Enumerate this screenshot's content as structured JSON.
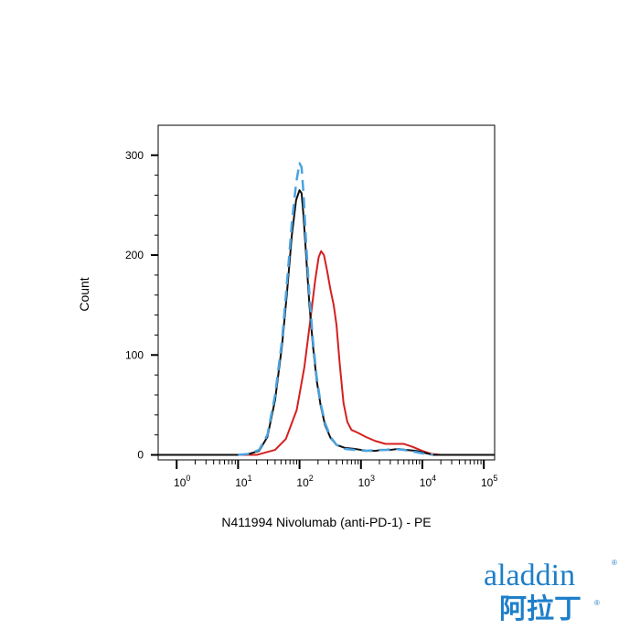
{
  "chart_data": {
    "type": "line",
    "title": "",
    "xlabel": "N411994 Nivolumab (anti-PD-1) - PE",
    "ylabel": "Count",
    "x_scale": "log",
    "xlim": [
      0.5,
      150000
    ],
    "ylim": [
      -5,
      330
    ],
    "grid": false,
    "legend": "none",
    "x_ticks": [
      {
        "value": 1,
        "base": "10",
        "exp": "0"
      },
      {
        "value": 10,
        "base": "10",
        "exp": "1"
      },
      {
        "value": 100,
        "base": "10",
        "exp": "2"
      },
      {
        "value": 1000,
        "base": "10",
        "exp": "3"
      },
      {
        "value": 10000,
        "base": "10",
        "exp": "4"
      },
      {
        "value": 100000,
        "base": "10",
        "exp": "5"
      }
    ],
    "y_ticks": [
      0,
      100,
      200,
      300
    ],
    "series": [
      {
        "color": "#d42020",
        "dash": "solid",
        "points": [
          [
            0.5,
            0
          ],
          [
            20,
            0
          ],
          [
            40,
            5
          ],
          [
            60,
            16
          ],
          [
            90,
            45
          ],
          [
            120,
            88
          ],
          [
            150,
            135
          ],
          [
            180,
            175
          ],
          [
            205,
            198
          ],
          [
            225,
            204
          ],
          [
            250,
            200
          ],
          [
            280,
            185
          ],
          [
            320,
            165
          ],
          [
            360,
            150
          ],
          [
            400,
            130
          ],
          [
            450,
            92
          ],
          [
            520,
            52
          ],
          [
            600,
            33
          ],
          [
            700,
            25
          ],
          [
            900,
            22
          ],
          [
            1200,
            18
          ],
          [
            1700,
            14
          ],
          [
            2500,
            11
          ],
          [
            3500,
            11
          ],
          [
            5000,
            11
          ],
          [
            7000,
            8
          ],
          [
            10000,
            4
          ],
          [
            14000,
            1
          ],
          [
            20000,
            0
          ],
          [
            150000,
            0
          ]
        ]
      },
      {
        "color": "#111111",
        "dash": "solid",
        "points": [
          [
            0.5,
            0
          ],
          [
            10,
            0
          ],
          [
            15,
            1
          ],
          [
            22,
            4
          ],
          [
            30,
            18
          ],
          [
            40,
            55
          ],
          [
            52,
            110
          ],
          [
            62,
            160
          ],
          [
            75,
            220
          ],
          [
            88,
            255
          ],
          [
            100,
            265
          ],
          [
            108,
            262
          ],
          [
            116,
            240
          ],
          [
            128,
            200
          ],
          [
            145,
            150
          ],
          [
            165,
            110
          ],
          [
            190,
            75
          ],
          [
            220,
            50
          ],
          [
            260,
            30
          ],
          [
            320,
            17
          ],
          [
            400,
            10
          ],
          [
            550,
            7
          ],
          [
            800,
            6
          ],
          [
            1000,
            5
          ],
          [
            1300,
            4
          ],
          [
            1700,
            4
          ],
          [
            2200,
            5
          ],
          [
            3000,
            5
          ],
          [
            4000,
            6
          ],
          [
            5500,
            5
          ],
          [
            8000,
            4
          ],
          [
            11000,
            2
          ],
          [
            15000,
            0
          ],
          [
            150000,
            0
          ]
        ]
      },
      {
        "color": "#4aa3e0",
        "dash": "dashed",
        "points": [
          [
            10,
            0
          ],
          [
            15,
            1
          ],
          [
            22,
            5
          ],
          [
            30,
            20
          ],
          [
            40,
            60
          ],
          [
            52,
            115
          ],
          [
            62,
            170
          ],
          [
            75,
            232
          ],
          [
            88,
            272
          ],
          [
            100,
            292
          ],
          [
            108,
            288
          ],
          [
            116,
            262
          ],
          [
            128,
            212
          ],
          [
            145,
            160
          ],
          [
            165,
            115
          ],
          [
            190,
            78
          ],
          [
            220,
            52
          ],
          [
            260,
            32
          ],
          [
            320,
            18
          ],
          [
            400,
            10
          ],
          [
            550,
            6
          ],
          [
            800,
            5
          ],
          [
            1200,
            4
          ],
          [
            1800,
            5
          ],
          [
            2500,
            5
          ],
          [
            3500,
            6
          ],
          [
            5000,
            5
          ],
          [
            7500,
            3
          ],
          [
            11000,
            1
          ],
          [
            15000,
            0
          ]
        ]
      }
    ]
  },
  "logo": {
    "latin": "aladdin",
    "cjk": "阿拉丁",
    "reg": "®"
  }
}
